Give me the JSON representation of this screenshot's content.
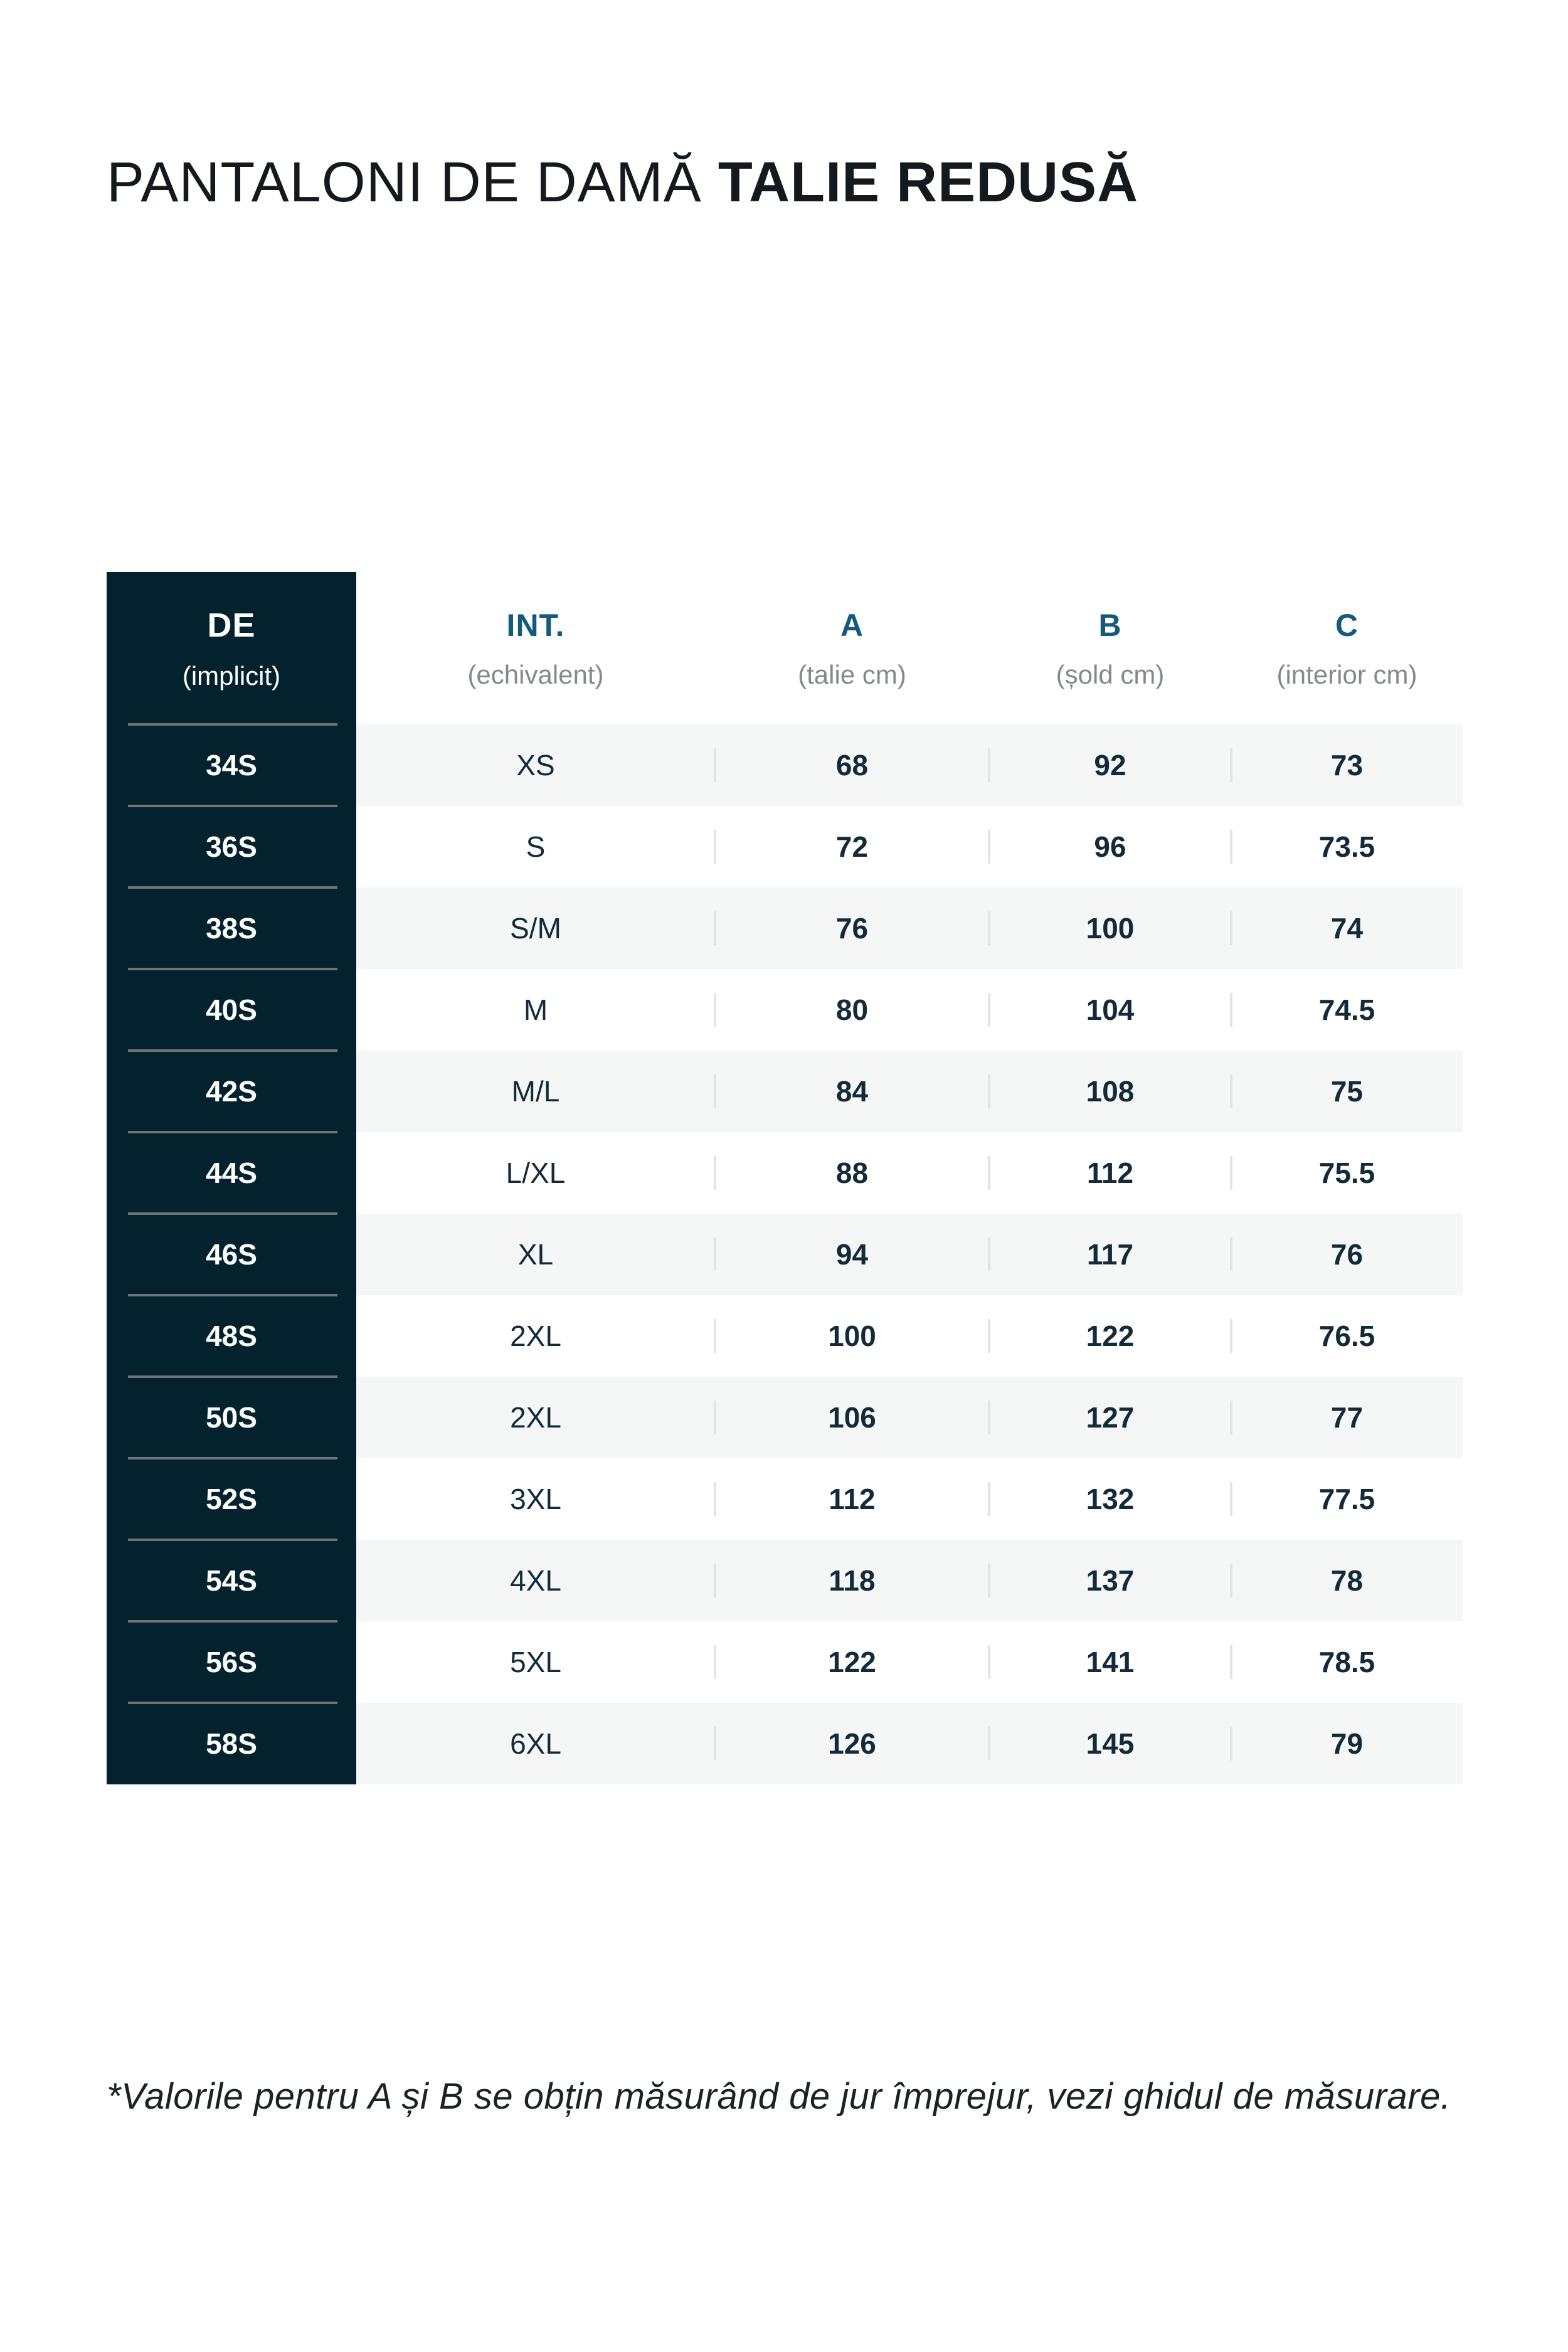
{
  "title": {
    "regular": "PANTALONI DE DAMĂ ",
    "bold": "TALIE REDUSĂ"
  },
  "table": {
    "header": {
      "de": {
        "label": "DE",
        "sub": "(implicit)"
      },
      "int": {
        "label": "INT.",
        "sub": "(echivalent)"
      },
      "a": {
        "label": "A",
        "sub": "(talie cm)"
      },
      "b": {
        "label": "B",
        "sub": "(șold cm)"
      },
      "c": {
        "label": "C",
        "sub": "(interior cm)"
      }
    },
    "rows": [
      {
        "de": "34S",
        "int": "XS",
        "a": "68",
        "b": "92",
        "c": "73"
      },
      {
        "de": "36S",
        "int": "S",
        "a": "72",
        "b": "96",
        "c": "73.5"
      },
      {
        "de": "38S",
        "int": "S/M",
        "a": "76",
        "b": "100",
        "c": "74"
      },
      {
        "de": "40S",
        "int": "M",
        "a": "80",
        "b": "104",
        "c": "74.5"
      },
      {
        "de": "42S",
        "int": "M/L",
        "a": "84",
        "b": "108",
        "c": "75"
      },
      {
        "de": "44S",
        "int": "L/XL",
        "a": "88",
        "b": "112",
        "c": "75.5"
      },
      {
        "de": "46S",
        "int": "XL",
        "a": "94",
        "b": "117",
        "c": "76"
      },
      {
        "de": "48S",
        "int": "2XL",
        "a": "100",
        "b": "122",
        "c": "76.5"
      },
      {
        "de": "50S",
        "int": "2XL",
        "a": "106",
        "b": "127",
        "c": "77"
      },
      {
        "de": "52S",
        "int": "3XL",
        "a": "112",
        "b": "132",
        "c": "77.5"
      },
      {
        "de": "54S",
        "int": "4XL",
        "a": "118",
        "b": "137",
        "c": "78"
      },
      {
        "de": "56S",
        "int": "5XL",
        "a": "122",
        "b": "141",
        "c": "78.5"
      },
      {
        "de": "58S",
        "int": "6XL",
        "a": "126",
        "b": "145",
        "c": "79"
      }
    ]
  },
  "footnote": "*Valorile pentru A și B se obțin măsurând de jur împrejur, vezi ghidul de măsurare.",
  "colors": {
    "header_bg": "#03222e",
    "accent_blue": "#135a7e",
    "data_text": "#132a3a",
    "muted_gray": "#85898d",
    "stripe": "#f5f6f6",
    "divider_gray": "#6e7478",
    "separator_light": "#e3e4e4"
  }
}
